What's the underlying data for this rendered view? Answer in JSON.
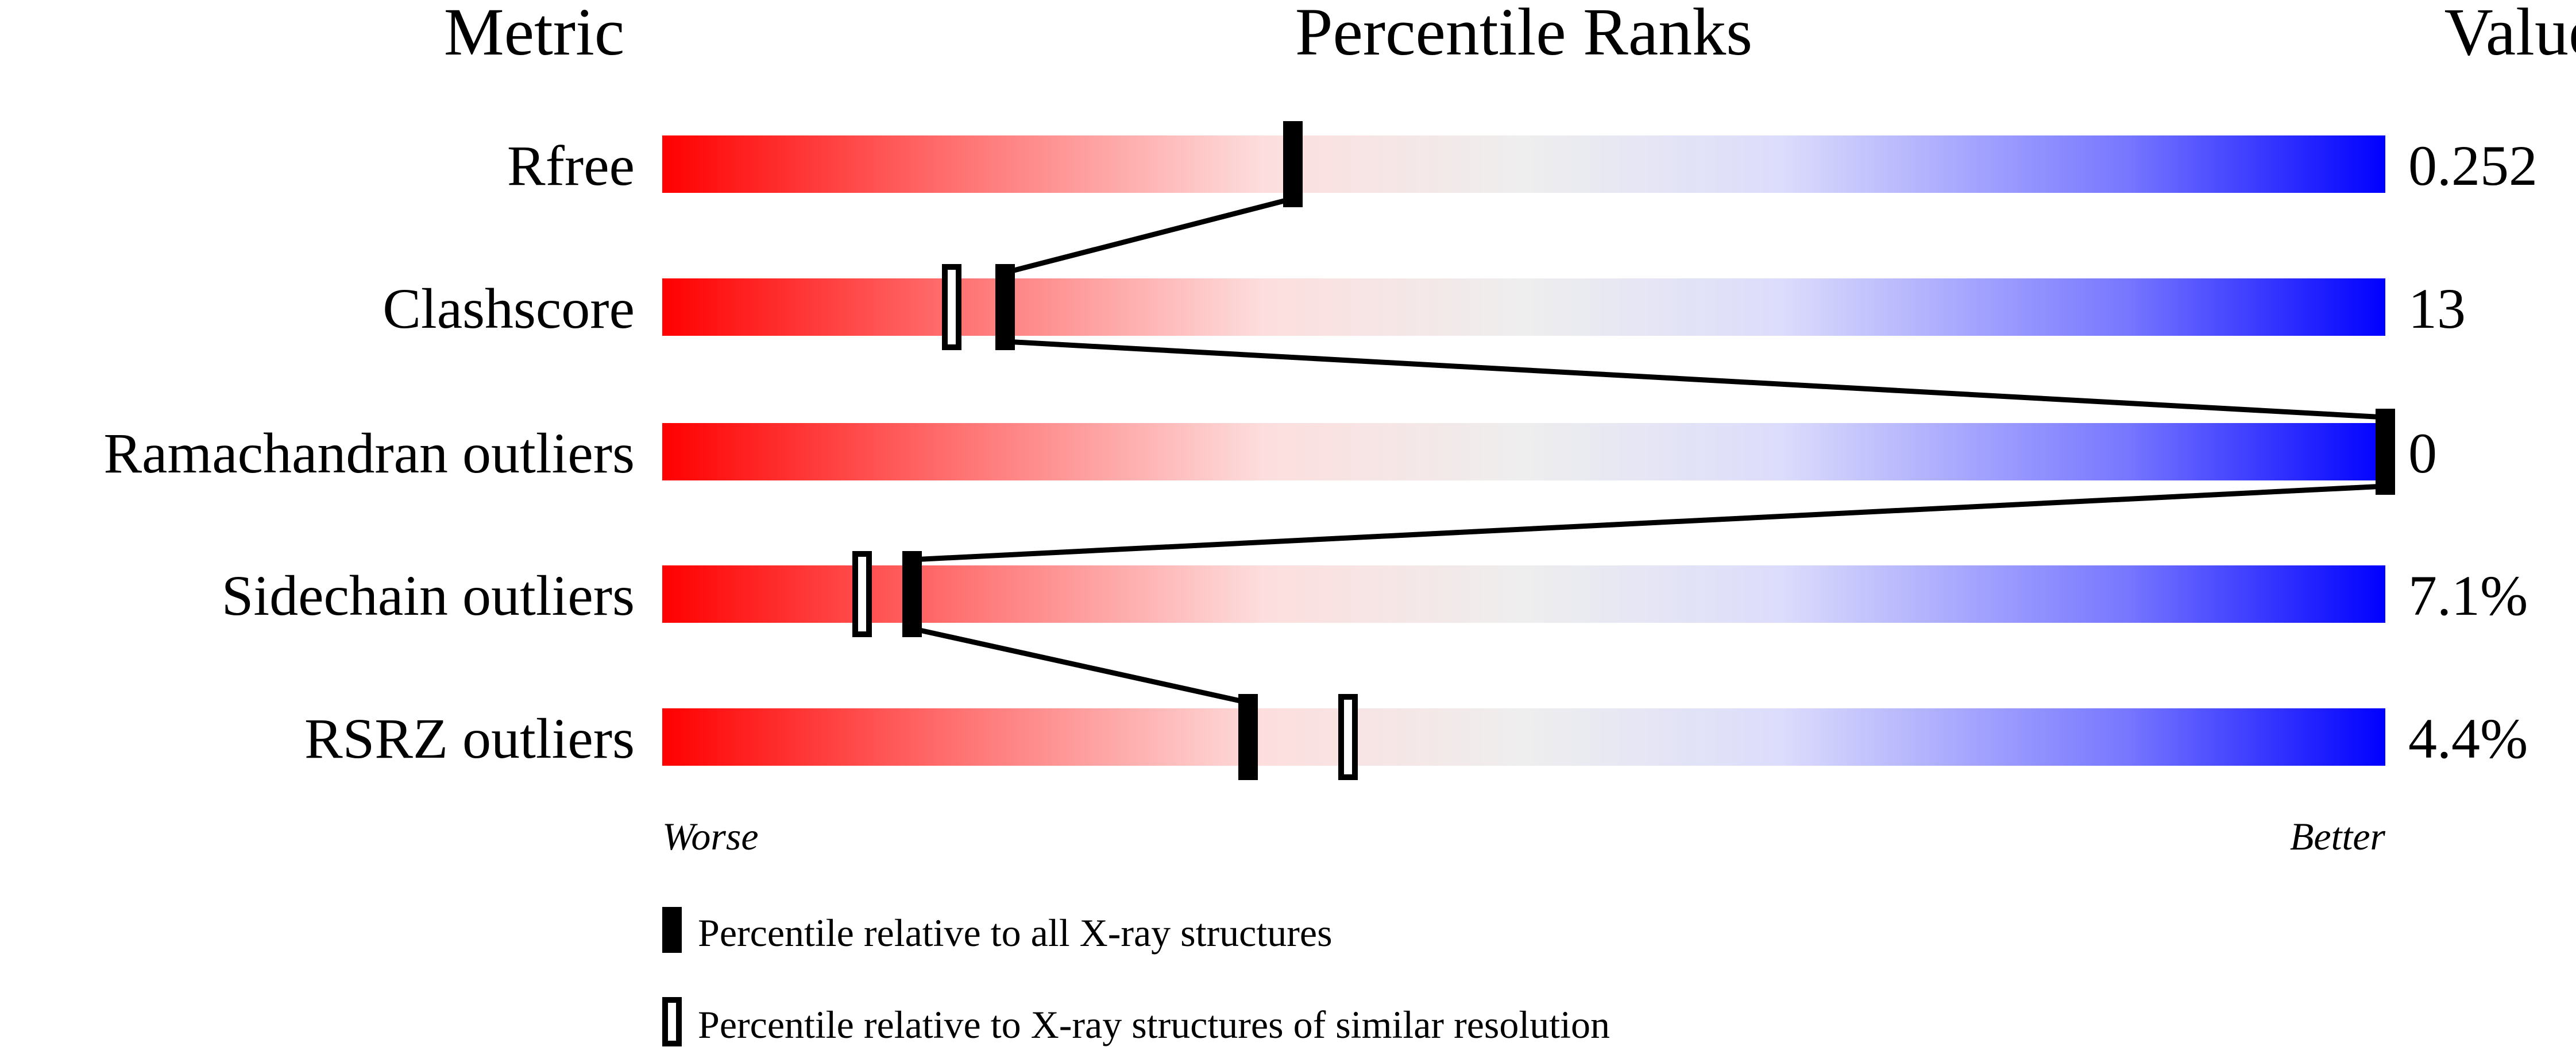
{
  "chart_data": {
    "type": "percentile-ranks",
    "headers": {
      "metric": "Metric",
      "ranks": "Percentile Ranks",
      "value": "Value"
    },
    "xlim": [
      0,
      100
    ],
    "metrics": [
      {
        "name": "Rfree",
        "value": "0.252",
        "percentile_all": 36.6,
        "percentile_similar": null
      },
      {
        "name": "Clashscore",
        "value": "13",
        "percentile_all": 19.9,
        "percentile_similar": 16.8
      },
      {
        "name": "Ramachandran outliers",
        "value": "0",
        "percentile_all": 100,
        "percentile_similar": 100
      },
      {
        "name": "Sidechain outliers",
        "value": "7.1%",
        "percentile_all": 14.5,
        "percentile_similar": 11.6
      },
      {
        "name": "RSRZ outliers",
        "value": "4.4%",
        "percentile_all": 34.0,
        "percentile_similar": 39.8
      }
    ],
    "axis_labels": {
      "worse": "Worse",
      "better": "Better"
    },
    "legend": {
      "all": "Percentile relative to all X-ray structures",
      "similar": "Percentile relative to X-ray structures of similar resolution"
    },
    "colors": {
      "worse": "#ff0000",
      "middle": "#eeeeee",
      "better": "#0000ff",
      "marker": "#000000"
    }
  }
}
